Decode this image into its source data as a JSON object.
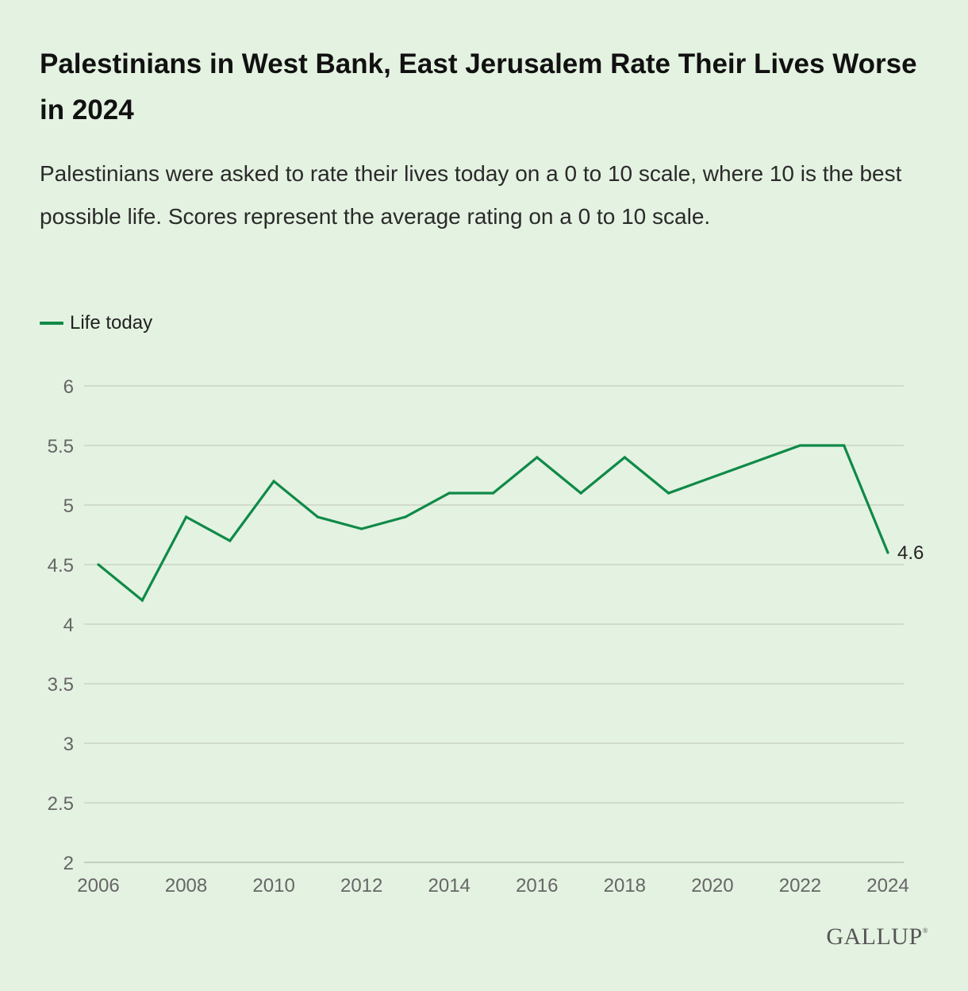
{
  "title": "Palestinians in West Bank, East Jerusalem Rate Their Lives Worse in 2024",
  "subtitle": "Palestinians were asked to rate their lives today on a 0 to 10 scale, where 10 is the best possible life. Scores represent the average rating on a 0 to 10 scale.",
  "logo": {
    "text": "GALLUP",
    "mark": "®"
  },
  "colors": {
    "background": "#e4f2e1",
    "series": "#0f8a48",
    "gridline": "#c9d3c6",
    "axis_text": "#666666"
  },
  "chart_data": {
    "type": "line",
    "title": "",
    "xlabel": "",
    "ylabel": "",
    "x": [
      2006,
      2007,
      2008,
      2009,
      2010,
      2011,
      2012,
      2013,
      2014,
      2015,
      2016,
      2017,
      2018,
      2019,
      2022,
      2023,
      2024
    ],
    "series": [
      {
        "name": "Life today",
        "values": [
          4.5,
          4.2,
          4.9,
          4.7,
          5.2,
          4.9,
          4.8,
          4.9,
          5.1,
          5.1,
          5.4,
          5.1,
          5.4,
          5.1,
          5.5,
          5.5,
          4.6
        ]
      }
    ],
    "end_label": "4.6",
    "xlim": [
      2006,
      2024
    ],
    "ylim": [
      2,
      6
    ],
    "x_ticks": [
      "2006",
      "2008",
      "2010",
      "2012",
      "2014",
      "2016",
      "2018",
      "2020",
      "2022",
      "2024"
    ],
    "y_ticks": [
      "2",
      "2.5",
      "3",
      "3.5",
      "4",
      "4.5",
      "5",
      "5.5",
      "6"
    ],
    "grid": "horizontal",
    "legend_position": "top-left"
  }
}
